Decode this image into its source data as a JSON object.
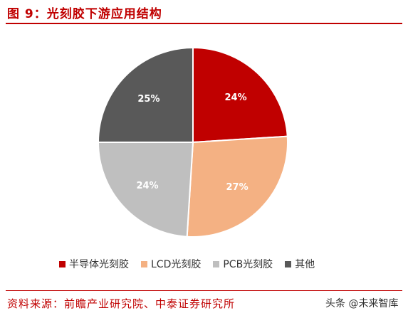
{
  "figure_title": "图 9：光刻胶下游应用结构",
  "source": "资料来源：前瞻产业研究院、中泰证券研究所",
  "watermark": "头条 @未来智库",
  "chart_data": {
    "type": "pie",
    "title": "",
    "legend_position": "bottom",
    "slices": [
      {
        "label": "半导体光刻胶",
        "value": 24,
        "display": "24%",
        "color": "#c00000"
      },
      {
        "label": "LCD光刻胶",
        "value": 27,
        "display": "27%",
        "color": "#f4b183"
      },
      {
        "label": "PCB光刻胶",
        "value": 24,
        "display": "24%",
        "color": "#bfbfbf"
      },
      {
        "label": "其他",
        "value": 25,
        "display": "25%",
        "color": "#595959"
      }
    ]
  }
}
